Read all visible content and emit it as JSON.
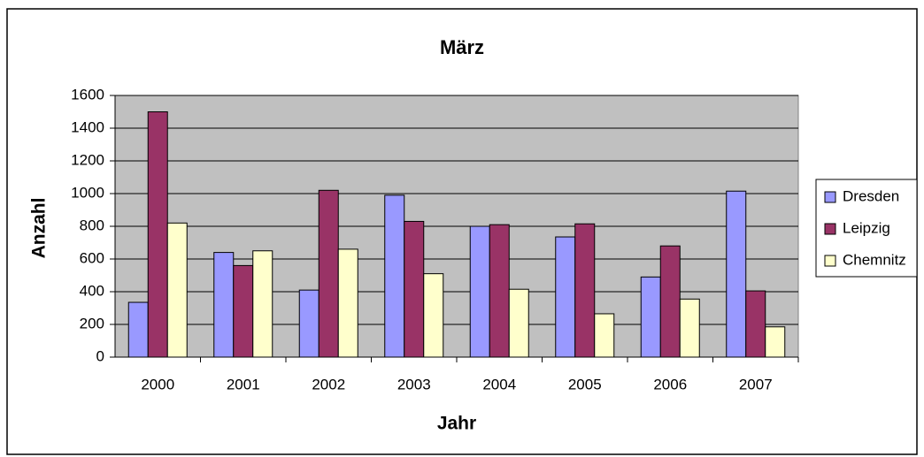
{
  "chart_data": {
    "type": "bar",
    "title": "März",
    "x_label": "Jahr",
    "y_label": "Anzahl",
    "categories": [
      "2000",
      "2001",
      "2002",
      "2003",
      "2004",
      "2005",
      "2006",
      "2007"
    ],
    "series": [
      {
        "name": "Dresden",
        "color": "#9999ff",
        "values": [
          335,
          640,
          410,
          990,
          800,
          735,
          490,
          1015
        ]
      },
      {
        "name": "Leipzig",
        "color": "#993366",
        "values": [
          1500,
          560,
          1020,
          830,
          810,
          815,
          680,
          405
        ]
      },
      {
        "name": "Chemnitz",
        "color": "#ffffcc",
        "values": [
          820,
          650,
          660,
          510,
          415,
          265,
          355,
          185
        ]
      }
    ],
    "ylim": [
      0,
      1600
    ],
    "yticks": [
      0,
      200,
      400,
      600,
      800,
      1000,
      1200,
      1400,
      1600
    ],
    "grid": true,
    "legend": "right"
  }
}
